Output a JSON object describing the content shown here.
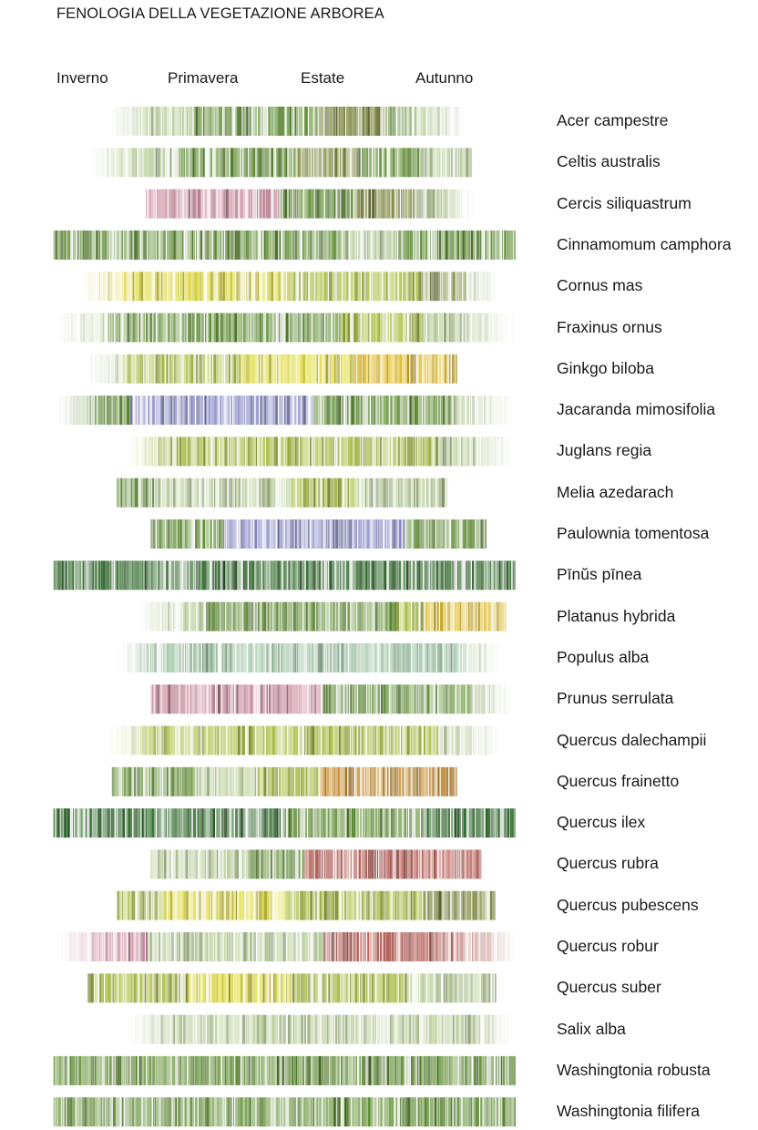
{
  "title": "FENOLOGIA DELLA VEGETAZIONE ARBOREA",
  "seasons": [
    "Inverno",
    "Primavera",
    "Estate",
    "Autunno"
  ],
  "colors": {
    "green": "#5f8f32",
    "dark_green": "#2f6a2a",
    "pale_green": "#b9cf98",
    "yellow_green": "#a9bd3e",
    "olive": "#7f8a3a",
    "yellow": "#e0db3c",
    "gold": "#e3be2a",
    "pink": "#cf8ea2",
    "violet": "#8c8ec9",
    "sage": "#9cc3a2",
    "orange": "#c98f2e",
    "red": "#b65a52"
  },
  "chart_data": {
    "type": "phenology-timeline",
    "title": "FENOLOGIA DELLA VEGETAZIONE ARBOREA",
    "x_axis": {
      "unit": "season",
      "ticks": [
        "Inverno",
        "Primavera",
        "Estate",
        "Autunno"
      ]
    },
    "series": [
      {
        "name": "Acer campestre",
        "start": 0.16,
        "end": 0.9,
        "fade_start": true,
        "fade_end": true,
        "phases": [
          [
            0.0,
            "pale_green"
          ],
          [
            0.24,
            "green"
          ],
          [
            0.58,
            "olive"
          ],
          [
            0.78,
            "green"
          ],
          [
            0.82,
            "pale_green"
          ]
        ]
      },
      {
        "name": "Celtis australis",
        "start": 0.12,
        "end": 0.91,
        "fade_start": true,
        "fade_end": false,
        "phases": [
          [
            0.0,
            "pale_green"
          ],
          [
            0.24,
            "green"
          ],
          [
            0.54,
            "olive"
          ],
          [
            0.7,
            "green"
          ],
          [
            0.86,
            "pale_green"
          ]
        ]
      },
      {
        "name": "Cercis siliquastrum",
        "start": 0.24,
        "end": 0.92,
        "fade_start": false,
        "fade_end": true,
        "phases": [
          [
            0.0,
            "pink"
          ],
          [
            0.4,
            "green"
          ],
          [
            0.62,
            "olive"
          ],
          [
            0.82,
            "pale_green"
          ]
        ]
      },
      {
        "name": "Cinnamomum camphora",
        "start": 0.05,
        "end": 1.0,
        "fade_start": false,
        "fade_end": false,
        "phases": [
          [
            0.0,
            "green"
          ],
          [
            0.62,
            "pale_green"
          ],
          [
            0.74,
            "green"
          ]
        ]
      },
      {
        "name": "Cornus mas",
        "start": 0.1,
        "end": 0.97,
        "fade_start": true,
        "fade_end": true,
        "phases": [
          [
            0.0,
            "yellow"
          ],
          [
            0.12,
            "yellow"
          ],
          [
            0.5,
            "yellow_green"
          ],
          [
            0.8,
            "olive"
          ],
          [
            0.92,
            "pale_green"
          ]
        ]
      },
      {
        "name": "Fraxinus ornus",
        "start": 0.05,
        "end": 1.0,
        "fade_start": true,
        "fade_end": true,
        "phases": [
          [
            0.0,
            "pale_green"
          ],
          [
            0.12,
            "green"
          ],
          [
            0.62,
            "yellow_green"
          ],
          [
            0.8,
            "pale_green"
          ]
        ]
      },
      {
        "name": "Ginkgo biloba",
        "start": 0.11,
        "end": 0.88,
        "fade_start": true,
        "fade_end": false,
        "phases": [
          [
            0.0,
            "pale_green"
          ],
          [
            0.1,
            "yellow_green"
          ],
          [
            0.42,
            "yellow"
          ],
          [
            0.72,
            "gold"
          ]
        ]
      },
      {
        "name": "Jacaranda mimosifolia",
        "start": 0.05,
        "end": 1.0,
        "fade_start": true,
        "fade_end": true,
        "phases": [
          [
            0.0,
            "green"
          ],
          [
            0.16,
            "violet"
          ],
          [
            0.56,
            "green"
          ],
          [
            0.86,
            "pale_green"
          ]
        ]
      },
      {
        "name": "Juglans regia",
        "start": 0.2,
        "end": 1.0,
        "fade_start": true,
        "fade_end": true,
        "phases": [
          [
            0.0,
            "yellow_green"
          ],
          [
            0.5,
            "yellow_green"
          ],
          [
            0.8,
            "pale_green"
          ]
        ]
      },
      {
        "name": "Melia azedarach",
        "start": 0.18,
        "end": 0.86,
        "fade_start": false,
        "fade_end": false,
        "phases": [
          [
            0.0,
            "green"
          ],
          [
            0.12,
            "pale_green"
          ],
          [
            0.52,
            "yellow_green"
          ],
          [
            0.72,
            "pale_green"
          ]
        ]
      },
      {
        "name": "Paulownia tomentosa",
        "start": 0.25,
        "end": 0.94,
        "fade_start": false,
        "fade_end": false,
        "phases": [
          [
            0.0,
            "green"
          ],
          [
            0.22,
            "violet"
          ],
          [
            0.76,
            "green"
          ]
        ]
      },
      {
        "name": "Pīnŭs pīnea",
        "start": 0.05,
        "end": 1.0,
        "fade_start": false,
        "fade_end": false,
        "phases": [
          [
            0.0,
            "dark_green"
          ],
          [
            0.4,
            "dark_green"
          ]
        ]
      },
      {
        "name": "Platanus hybrida",
        "start": 0.22,
        "end": 0.98,
        "fade_start": true,
        "fade_end": false,
        "phases": [
          [
            0.0,
            "pale_green"
          ],
          [
            0.18,
            "green"
          ],
          [
            0.7,
            "yellow_green"
          ],
          [
            0.78,
            "gold"
          ]
        ]
      },
      {
        "name": "Populus alba",
        "start": 0.17,
        "end": 0.97,
        "fade_start": true,
        "fade_end": true,
        "phases": [
          [
            0.0,
            "sage"
          ],
          [
            0.5,
            "sage"
          ],
          [
            0.92,
            "pale_green"
          ]
        ]
      },
      {
        "name": "Prunus serrulata",
        "start": 0.25,
        "end": 1.0,
        "fade_start": false,
        "fade_end": true,
        "phases": [
          [
            0.0,
            "pink"
          ],
          [
            0.46,
            "green"
          ],
          [
            0.88,
            "pale_green"
          ]
        ]
      },
      {
        "name": "Quercus dalechampii",
        "start": 0.16,
        "end": 0.97,
        "fade_start": true,
        "fade_end": true,
        "phases": [
          [
            0.0,
            "yellow_green"
          ],
          [
            0.5,
            "yellow_green"
          ],
          [
            0.84,
            "pale_green"
          ]
        ]
      },
      {
        "name": "Quercus frainetto",
        "start": 0.17,
        "end": 0.88,
        "fade_start": false,
        "fade_end": false,
        "phases": [
          [
            0.0,
            "green"
          ],
          [
            0.24,
            "pale_green"
          ],
          [
            0.42,
            "yellow_green"
          ],
          [
            0.6,
            "orange"
          ]
        ]
      },
      {
        "name": "Quercus ilex",
        "start": 0.05,
        "end": 1.0,
        "fade_start": false,
        "fade_end": false,
        "phases": [
          [
            0.0,
            "dark_green"
          ],
          [
            0.5,
            "green"
          ],
          [
            0.8,
            "dark_green"
          ]
        ]
      },
      {
        "name": "Quercus rubra",
        "start": 0.25,
        "end": 0.93,
        "fade_start": false,
        "fade_end": false,
        "phases": [
          [
            0.0,
            "pale_green"
          ],
          [
            0.3,
            "green"
          ],
          [
            0.46,
            "red"
          ]
        ]
      },
      {
        "name": "Quercus pubescens",
        "start": 0.18,
        "end": 0.96,
        "fade_start": false,
        "fade_end": false,
        "phases": [
          [
            0.0,
            "yellow_green"
          ],
          [
            0.12,
            "yellow"
          ],
          [
            0.44,
            "yellow_green"
          ],
          [
            0.8,
            "olive"
          ]
        ]
      },
      {
        "name": "Quercus robur",
        "start": 0.05,
        "end": 1.0,
        "fade_start": true,
        "fade_end": true,
        "phases": [
          [
            0.0,
            "pink"
          ],
          [
            0.2,
            "pale_green"
          ],
          [
            0.58,
            "red"
          ],
          [
            0.82,
            "red"
          ]
        ]
      },
      {
        "name": "Quercus suber",
        "start": 0.12,
        "end": 0.96,
        "fade_start": false,
        "fade_end": false,
        "phases": [
          [
            0.0,
            "yellow_green"
          ],
          [
            0.24,
            "yellow"
          ],
          [
            0.5,
            "yellow_green"
          ],
          [
            0.78,
            "pale_green"
          ]
        ]
      },
      {
        "name": "Salix alba",
        "start": 0.2,
        "end": 1.0,
        "fade_start": true,
        "fade_end": true,
        "phases": [
          [
            0.0,
            "pale_green"
          ],
          [
            0.6,
            "pale_green"
          ]
        ]
      },
      {
        "name": "Washingtonia robusta",
        "start": 0.05,
        "end": 1.0,
        "fade_start": false,
        "fade_end": false,
        "phases": [
          [
            0.0,
            "green"
          ],
          [
            0.5,
            "green"
          ]
        ]
      },
      {
        "name": "Washingtonia filifera",
        "start": 0.05,
        "end": 1.0,
        "fade_start": false,
        "fade_end": false,
        "phases": [
          [
            0.0,
            "green"
          ],
          [
            0.5,
            "green"
          ]
        ]
      }
    ]
  }
}
